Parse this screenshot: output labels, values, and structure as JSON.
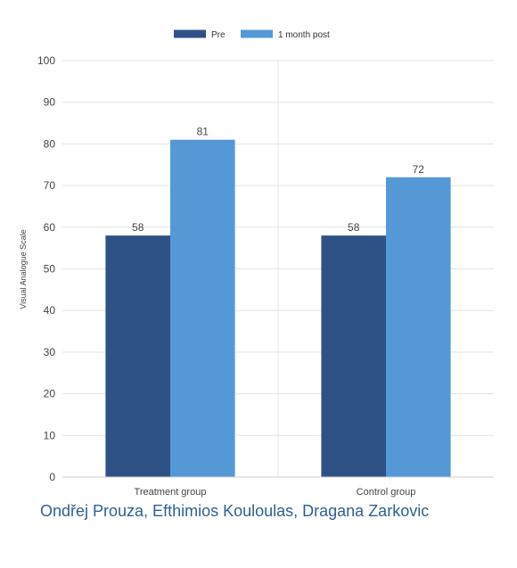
{
  "chart_data": {
    "type": "bar",
    "categories": [
      "Treatment group",
      "Control group"
    ],
    "series": [
      {
        "name": "Pre",
        "values": [
          58,
          58
        ],
        "color": "#2f5286"
      },
      {
        "name": "1 month post",
        "values": [
          81,
          72
        ],
        "color": "#5598d6"
      }
    ],
    "title": "",
    "xlabel": "",
    "ylabel": "Visual Analogue Scale",
    "ylim": [
      0,
      100
    ],
    "yticks": [
      0,
      10,
      20,
      30,
      40,
      50,
      60,
      70,
      80,
      90,
      100
    ],
    "grid": true,
    "legend_position": "top-center",
    "data_labels": true
  },
  "credit": "Ondřej Prouza, Efthimios Kouloulas, Dragana Zarkovic",
  "colors": {
    "credit": "#2e5f96",
    "grid": "#e3e3e3",
    "axis_text": "#444444"
  }
}
